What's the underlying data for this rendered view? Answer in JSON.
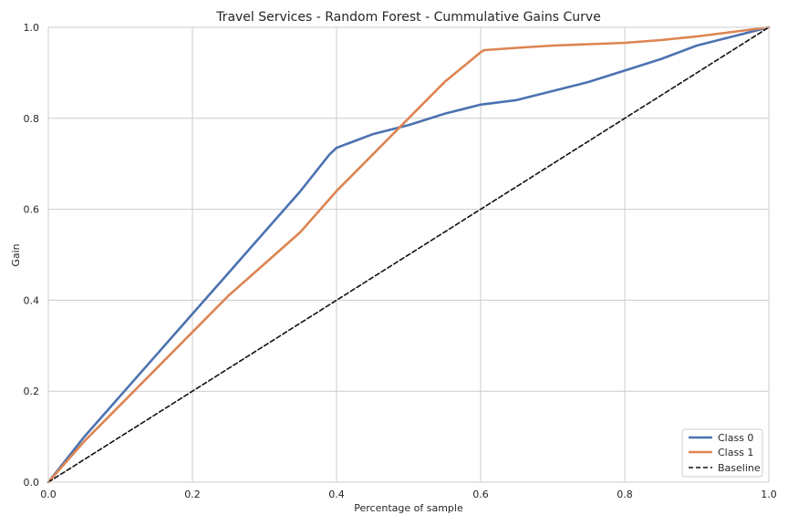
{
  "chart_data": {
    "type": "line",
    "title": "Travel Services - Random Forest - Cummulative Gains Curve",
    "xlabel": "Percentage of sample",
    "ylabel": "Gain",
    "xlim": [
      0,
      1
    ],
    "ylim": [
      0,
      1
    ],
    "xticks": [
      "0.0",
      "0.2",
      "0.4",
      "0.6",
      "0.8",
      "1.0"
    ],
    "yticks": [
      "0.0",
      "0.2",
      "0.4",
      "0.6",
      "0.8",
      "1.0"
    ],
    "grid": true,
    "legend_position": "bottom-right",
    "series": [
      {
        "name": "Class 0",
        "color": "#4c72b0",
        "x": [
          0,
          0.05,
          0.1,
          0.15,
          0.2,
          0.25,
          0.3,
          0.35,
          0.39,
          0.4,
          0.45,
          0.5,
          0.55,
          0.6,
          0.65,
          0.7,
          0.75,
          0.8,
          0.85,
          0.9,
          0.95,
          1.0
        ],
        "y": [
          0,
          0.1,
          0.19,
          0.28,
          0.37,
          0.46,
          0.55,
          0.64,
          0.72,
          0.735,
          0.765,
          0.785,
          0.81,
          0.83,
          0.84,
          0.86,
          0.88,
          0.905,
          0.93,
          0.96,
          0.98,
          1.0
        ]
      },
      {
        "name": "Class 1",
        "color": "#dd8452",
        "x": [
          0,
          0.05,
          0.1,
          0.15,
          0.2,
          0.25,
          0.3,
          0.35,
          0.4,
          0.45,
          0.5,
          0.55,
          0.6,
          0.605,
          0.65,
          0.7,
          0.75,
          0.8,
          0.85,
          0.9,
          0.95,
          1.0
        ],
        "y": [
          0,
          0.09,
          0.17,
          0.25,
          0.33,
          0.41,
          0.48,
          0.55,
          0.64,
          0.72,
          0.8,
          0.88,
          0.945,
          0.95,
          0.955,
          0.96,
          0.963,
          0.966,
          0.972,
          0.98,
          0.99,
          1.0
        ]
      },
      {
        "name": "Baseline",
        "color": "#111111",
        "dashed": true,
        "x": [
          0,
          1
        ],
        "y": [
          0,
          1
        ]
      }
    ]
  }
}
